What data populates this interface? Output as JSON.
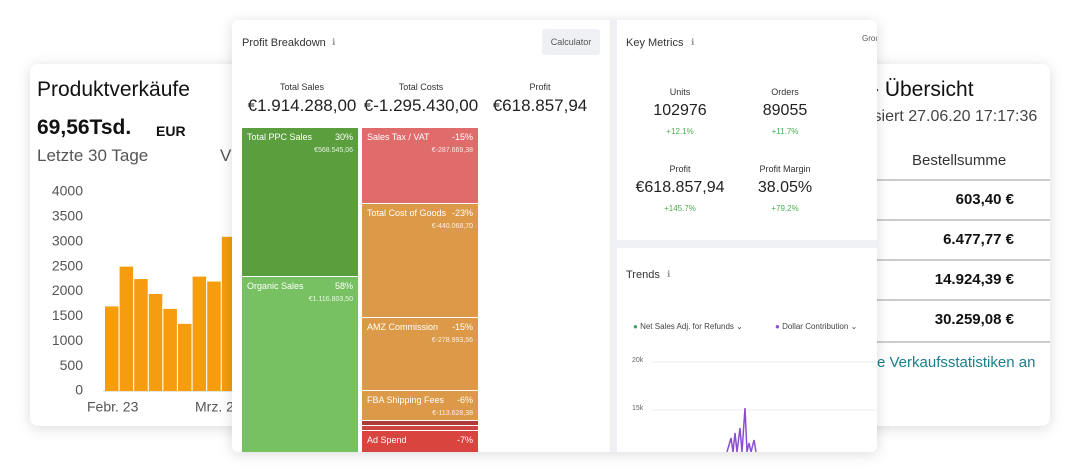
{
  "left_card": {
    "title": "Produktverkäufe",
    "amount": "69,56Tsd.",
    "currency": "EUR",
    "period": "Letzte 30 Tage",
    "compare": "V",
    "chart": {
      "type": "bar",
      "values": [
        1700,
        2500,
        2250,
        1950,
        1650,
        1350,
        2300,
        2200,
        3100
      ],
      "color": "#f59d0e",
      "ylim": [
        0,
        4000
      ],
      "yticks": [
        0,
        500,
        1000,
        1500,
        2000,
        2500,
        3000,
        3500,
        4000
      ],
      "x_labels": [
        "Febr. 23",
        "Mrz. 2"
      ]
    }
  },
  "right_card": {
    "title": "- Übersicht",
    "updated": "isiert 27.06.20 17:17:36",
    "column": "Bestellsumme",
    "rows": [
      "603,40 €",
      "6.477,77 €",
      "14.924,39 €",
      "30.259,08 €"
    ],
    "link": "re Verkaufsstatistiken an"
  },
  "profit_breakdown": {
    "title": "Profit Breakdown",
    "button": "Calculator",
    "headers": [
      {
        "label": "Total Sales",
        "value": "€1.914.288,00"
      },
      {
        "label": "Total Costs",
        "value": "€-1.295.430,00"
      },
      {
        "label": "Profit",
        "value": "€618.857,94"
      }
    ],
    "sales": [
      {
        "name": "Total PPC Sales",
        "percent": "30%",
        "amount": "€568.545,06"
      },
      {
        "name": "Organic Sales",
        "percent": "58%",
        "amount": "€1.116.803,50"
      }
    ],
    "costs": [
      {
        "name": "Sales Tax / VAT",
        "percent": "-15%",
        "amount": "€-287.669,38"
      },
      {
        "name": "Total Cost of Goods",
        "percent": "-23%",
        "amount": "€-440.068,70"
      },
      {
        "name": "AMZ Commission",
        "percent": "-15%",
        "amount": "€-278.993,56"
      },
      {
        "name": "FBA Shipping Fees",
        "percent": "-6%",
        "amount": "€-113.628,38"
      },
      {
        "name": "Ad Spend",
        "percent": "-7%"
      }
    ]
  },
  "key_metrics": {
    "title": "Key Metrics",
    "group": "Grou",
    "items": [
      {
        "label": "Units",
        "value": "102976",
        "change": "+12.1%"
      },
      {
        "label": "Orders",
        "value": "89055",
        "change": "+11.7%"
      },
      {
        "label": "Profit",
        "value": "€618.857,94",
        "change": "+145.7%"
      },
      {
        "label": "Profit Margin",
        "value": "38.05%",
        "change": "+79.2%"
      }
    ]
  },
  "trends": {
    "title": "Trends",
    "legend": [
      "Net Sales Adj. for Refunds",
      "Dollar Contribution"
    ],
    "yticks": [
      "20k",
      "15k"
    ]
  }
}
